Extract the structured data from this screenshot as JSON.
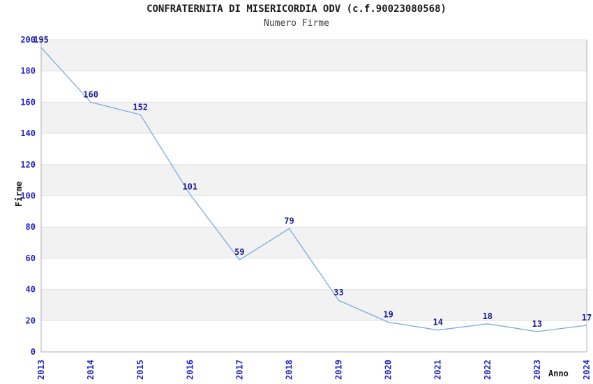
{
  "header": {
    "title": "CONFRATERNITA DI MISERICORDIA ODV (c.f.90023080568)",
    "subtitle": "Numero Firme"
  },
  "colors": {
    "line": "#79ABE2",
    "tick_label": "#2424C8",
    "data_label": "#1B1B8E",
    "band": "#F2F2F2",
    "grid": "#E2E2E2",
    "axis": "#AFAFAF",
    "title": "#1C1C1C",
    "subtitle": "#3F3F3F",
    "background": "#FFFFFF"
  },
  "chart_data": {
    "type": "line",
    "title": "CONFRATERNITA DI MISERICORDIA ODV (c.f.90023080568)",
    "subtitle": "Numero Firme",
    "xlabel": "Anno",
    "ylabel": "Firme",
    "x": [
      2013,
      2014,
      2015,
      2016,
      2017,
      2018,
      2019,
      2020,
      2021,
      2022,
      2023,
      2024
    ],
    "series": [
      {
        "name": "Numero Firme",
        "values": [
          195,
          160,
          152,
          101,
          59,
          79,
          33,
          19,
          14,
          18,
          13,
          17
        ]
      }
    ],
    "ylim": [
      0,
      200
    ],
    "ytick_step": 20,
    "yticks": [
      0,
      20,
      40,
      60,
      80,
      100,
      120,
      140,
      160,
      180,
      200
    ],
    "grid": "horizontal",
    "bands": "alternating-gray-from-top",
    "legend_position": "none",
    "data_labels_shown": true,
    "x_tick_rotation": -90
  }
}
